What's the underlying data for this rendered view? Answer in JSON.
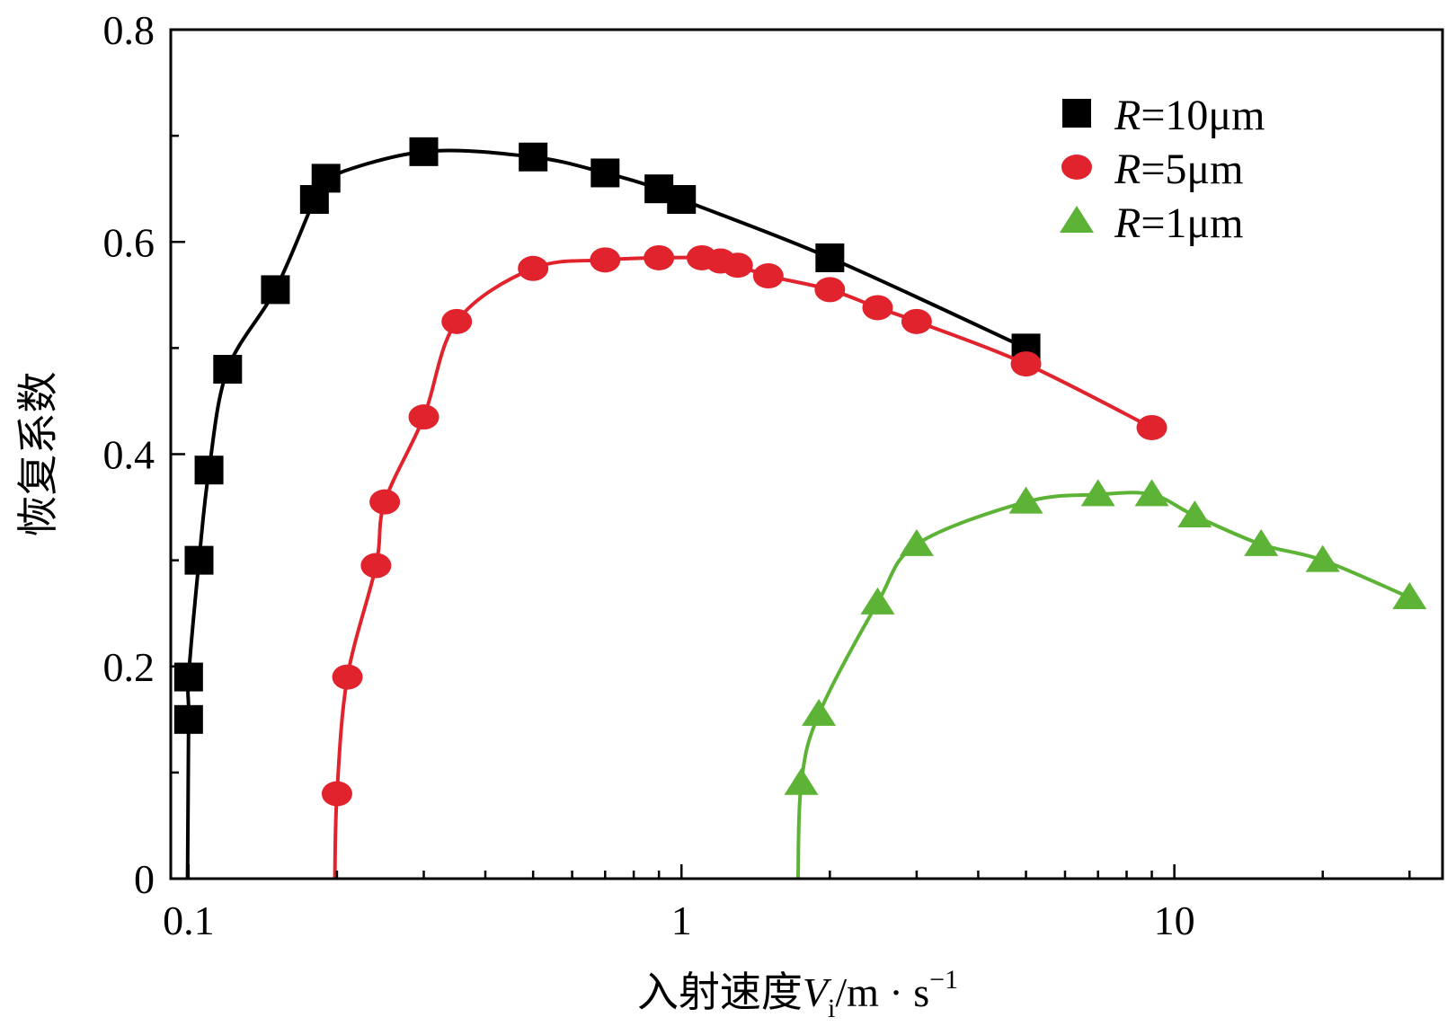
{
  "chart_data": {
    "type": "line",
    "xscale": "log",
    "xlim": [
      0.092,
      35
    ],
    "ylim": [
      0,
      0.8
    ],
    "xticks": [
      0.1,
      1,
      10
    ],
    "xtick_labels": [
      "0.1",
      "1",
      "10"
    ],
    "yticks": [
      0,
      0.2,
      0.4,
      0.6,
      0.8
    ],
    "ytick_labels": [
      "0",
      "0.2",
      "0.4",
      "0.6",
      "0.8"
    ],
    "xlabel": {
      "main": "入射速度",
      "var": "V",
      "sub": "i",
      "unit": "/m · s",
      "sup": "−1"
    },
    "ylabel": "恢复系数",
    "legend_position": "top-right",
    "series": [
      {
        "name": "R=10μm",
        "name_var": "R",
        "name_rest": "=10μm",
        "color": "#000000",
        "marker": "square",
        "points": [
          [
            0.1,
            0.15
          ],
          [
            0.1,
            0.19
          ],
          [
            0.105,
            0.3
          ],
          [
            0.11,
            0.385
          ],
          [
            0.12,
            0.48
          ],
          [
            0.15,
            0.555
          ],
          [
            0.18,
            0.64
          ],
          [
            0.19,
            0.66
          ],
          [
            0.3,
            0.685
          ],
          [
            0.5,
            0.68
          ],
          [
            0.7,
            0.665
          ],
          [
            0.9,
            0.65
          ],
          [
            1.0,
            0.64
          ],
          [
            2.0,
            0.585
          ],
          [
            5.0,
            0.5
          ]
        ]
      },
      {
        "name": "R=5μm",
        "name_var": "R",
        "name_rest": "=5μm",
        "color": "#e0232c",
        "marker": "circle",
        "points": [
          [
            0.2,
            0.08
          ],
          [
            0.21,
            0.19
          ],
          [
            0.24,
            0.295
          ],
          [
            0.25,
            0.355
          ],
          [
            0.3,
            0.435
          ],
          [
            0.35,
            0.525
          ],
          [
            0.5,
            0.575
          ],
          [
            0.7,
            0.583
          ],
          [
            0.9,
            0.585
          ],
          [
            1.1,
            0.585
          ],
          [
            1.2,
            0.582
          ],
          [
            1.3,
            0.578
          ],
          [
            1.5,
            0.568
          ],
          [
            2.0,
            0.555
          ],
          [
            2.5,
            0.538
          ],
          [
            3.0,
            0.525
          ],
          [
            5.0,
            0.485
          ],
          [
            9.0,
            0.425
          ]
        ]
      },
      {
        "name": "R=1μm",
        "name_var": "R",
        "name_rest": "=1μm",
        "color": "#5cb335",
        "marker": "triangle",
        "points": [
          [
            1.75,
            0.09
          ],
          [
            1.9,
            0.155
          ],
          [
            2.5,
            0.26
          ],
          [
            3.0,
            0.315
          ],
          [
            5.0,
            0.355
          ],
          [
            7.0,
            0.362
          ],
          [
            9.0,
            0.362
          ],
          [
            11.0,
            0.342
          ],
          [
            15.0,
            0.315
          ],
          [
            20.0,
            0.3
          ],
          [
            30.0,
            0.265
          ]
        ]
      }
    ]
  }
}
